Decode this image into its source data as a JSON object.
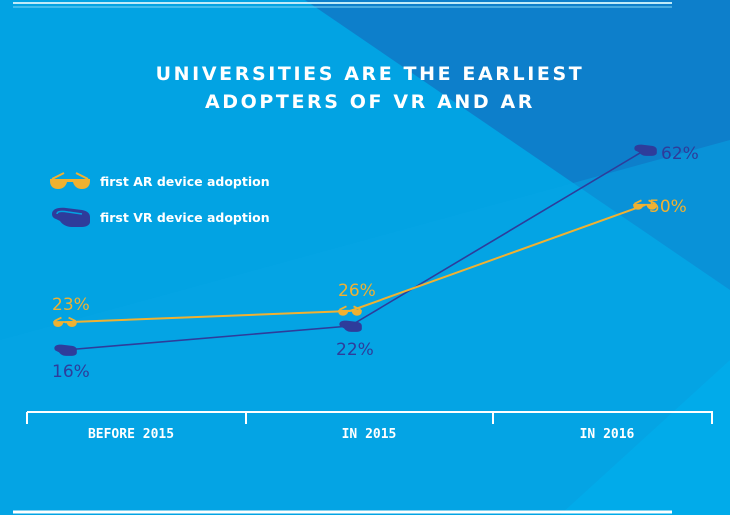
{
  "title_line1": "UNIVERSITIES ARE THE EARLIEST",
  "title_line2": "ADOPTERS OF VR AND AR",
  "legend": [
    {
      "icon": "ar-glasses-icon",
      "label": "first AR device adoption",
      "color": "#f0b131"
    },
    {
      "icon": "vr-headset-icon",
      "label": "first VR device adoption",
      "color": "#2e3c9b"
    }
  ],
  "colors": {
    "background_light": "#02a3e3",
    "background_dark": "#0d7fcb",
    "ar": "#f0b131",
    "vr": "#2e3c9b",
    "axis": "#ffffff"
  },
  "chart_data": {
    "type": "line",
    "title": "UNIVERSITIES ARE THE EARLIEST ADOPTERS OF VR AND AR",
    "categories": [
      "BEFORE 2015",
      "IN 2015",
      "IN 2016"
    ],
    "series": [
      {
        "name": "first AR device adoption",
        "values": [
          23,
          26,
          50
        ],
        "labels": [
          "23%",
          "26%",
          "50%"
        ]
      },
      {
        "name": "first VR device adoption",
        "values": [
          16,
          22,
          62
        ],
        "labels": [
          "16%",
          "22%",
          "62%"
        ]
      }
    ],
    "unit": "%",
    "xlabel": "",
    "ylabel": "",
    "ylim": [
      0,
      70
    ],
    "grid": false,
    "legend_position": "top-left"
  }
}
